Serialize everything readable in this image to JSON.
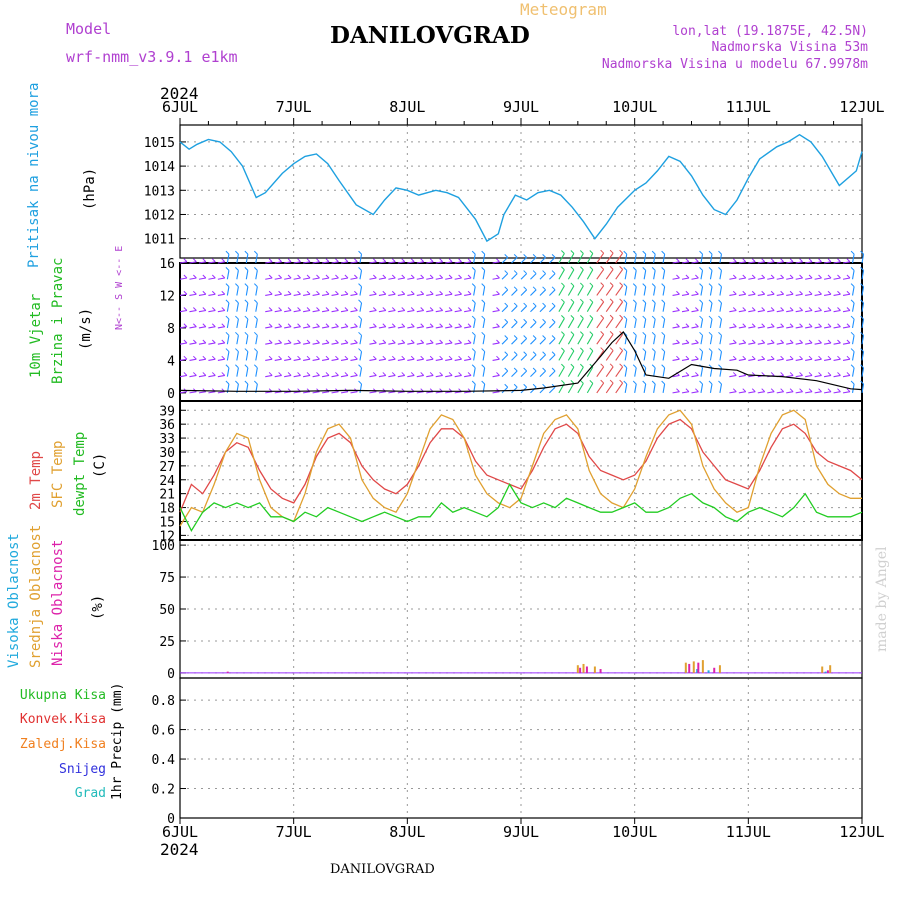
{
  "header": {
    "model_label": "Model",
    "model_name": "wrf-nmm_v3.9.1  e1km",
    "station": "DANILOVGRAD",
    "meteogram_label": "Meteogram",
    "lonlat": "lon,lat (19.1875E, 42.5N)",
    "elevation": "Nadmorska Visina 53m",
    "model_elevation": "Nadmorska Visina u modelu 67.9978m",
    "year_top": "2024",
    "year_bottom": "2024",
    "footer_station": "DANILOVGRAD",
    "credit": "made by Angel"
  },
  "colors": {
    "pressure": "#1ea0e0",
    "wind_label": "#22bb22",
    "wind_barbs": "#9b30ff",
    "wind_barbs_alt": "#1e90ff",
    "temp2m": "#e04848",
    "sfc_temp": "#e0a030",
    "dewpt": "#22cc22",
    "high_cloud": "#22aadd",
    "mid_cloud": "#e0a030",
    "low_cloud": "#dd22aa",
    "total_precip": "#22bb22",
    "conv_precip": "#e03030",
    "frozen_precip": "#f08020",
    "snow": "#3030dd",
    "hail": "#22bbbb",
    "text_purple": "#b040d0",
    "text_orange": "#f0c070"
  },
  "chart_data": [
    {
      "type": "line",
      "panel": "pressure",
      "ylabel": [
        "Pritisak na nivou mora",
        "(hPa)"
      ],
      "ylim": [
        1010.2,
        1015.7
      ],
      "yticks": [
        1011,
        1012,
        1013,
        1014,
        1015
      ],
      "x_unit": "days since 6JUL 00UTC",
      "x_ticks": [
        "6JUL",
        "7JUL",
        "8JUL",
        "9JUL",
        "10JUL",
        "11JUL",
        "12JUL"
      ],
      "series": [
        {
          "x": [
            0.0,
            0.08,
            0.15,
            0.25,
            0.35,
            0.45,
            0.55,
            0.67,
            0.75,
            0.9,
            1.0,
            1.1,
            1.2,
            1.3,
            1.4,
            1.55,
            1.7,
            1.8,
            1.9,
            2.0,
            2.1,
            2.25,
            2.35,
            2.45,
            2.6,
            2.7,
            2.8,
            2.85,
            2.95,
            3.05,
            3.15,
            3.25,
            3.35,
            3.45,
            3.55,
            3.65,
            3.75,
            3.85,
            4.0,
            4.1,
            4.2,
            4.3,
            4.4,
            4.5,
            4.6,
            4.7,
            4.8,
            4.9,
            5.0,
            5.1,
            5.25,
            5.35,
            5.45,
            5.55,
            5.65,
            5.8,
            5.95,
            6.0
          ],
          "y": [
            1015.0,
            1014.7,
            1014.9,
            1015.1,
            1015.0,
            1014.6,
            1014.0,
            1012.7,
            1012.9,
            1013.7,
            1014.1,
            1014.4,
            1014.5,
            1014.1,
            1013.4,
            1012.4,
            1012.0,
            1012.6,
            1013.1,
            1013.0,
            1012.8,
            1013.0,
            1012.9,
            1012.7,
            1011.8,
            1010.9,
            1011.2,
            1012.0,
            1012.8,
            1012.6,
            1012.9,
            1013.0,
            1012.8,
            1012.3,
            1011.7,
            1011.0,
            1011.6,
            1012.3,
            1013.0,
            1013.3,
            1013.8,
            1014.4,
            1014.2,
            1013.6,
            1012.8,
            1012.2,
            1012.0,
            1012.6,
            1013.5,
            1014.3,
            1014.8,
            1015.0,
            1015.3,
            1015.0,
            1014.4,
            1013.2,
            1013.8,
            1014.6
          ]
        }
      ]
    },
    {
      "type": "barbs",
      "panel": "wind",
      "ylabel": [
        "10m Vjetar",
        "Brzina i Pravac",
        "(m/s)"
      ],
      "ylim": [
        -1,
        16
      ],
      "yticks": [
        0,
        4,
        8,
        12,
        16
      ],
      "compass_label": "N<-- S  W <-- E",
      "rows": [
        0,
        2,
        4,
        6,
        8,
        10,
        12,
        14,
        16
      ],
      "speed_series": {
        "x": [
          0,
          0.5,
          1.0,
          1.5,
          2.0,
          2.5,
          3.0,
          3.2,
          3.5,
          3.7,
          3.8,
          3.9,
          4.0,
          4.1,
          4.3,
          4.5,
          4.7,
          4.9,
          5.0,
          5.3,
          5.6,
          5.9,
          6.0
        ],
        "y": [
          0.3,
          0.2,
          0.2,
          0.3,
          0.2,
          0.2,
          0.3,
          0.6,
          1.2,
          4.5,
          6.2,
          7.5,
          5.2,
          2.2,
          1.8,
          3.5,
          3.0,
          2.8,
          2.2,
          2.0,
          1.5,
          0.5,
          0.4
        ]
      }
    },
    {
      "type": "line",
      "panel": "temperature",
      "ylabel": [
        "2m Temp",
        "SFC Temp",
        "dewpt Temp",
        "(C)"
      ],
      "ylim": [
        11,
        41
      ],
      "yticks": [
        12,
        15,
        18,
        21,
        24,
        27,
        30,
        33,
        36,
        39
      ],
      "series": [
        {
          "name": "2m Temp",
          "x": [
            0,
            0.1,
            0.2,
            0.3,
            0.4,
            0.5,
            0.6,
            0.7,
            0.8,
            0.9,
            1.0,
            1.1,
            1.2,
            1.3,
            1.4,
            1.5,
            1.6,
            1.7,
            1.8,
            1.9,
            2.0,
            2.1,
            2.2,
            2.3,
            2.4,
            2.5,
            2.6,
            2.7,
            2.8,
            2.9,
            3.0,
            3.1,
            3.2,
            3.3,
            3.4,
            3.5,
            3.6,
            3.7,
            3.8,
            3.9,
            4.0,
            4.1,
            4.2,
            4.3,
            4.4,
            4.5,
            4.6,
            4.7,
            4.8,
            4.9,
            5.0,
            5.1,
            5.2,
            5.3,
            5.4,
            5.5,
            5.6,
            5.7,
            5.8,
            5.9,
            6.0
          ],
          "y": [
            17,
            23,
            21,
            25,
            30,
            32,
            31,
            26,
            22,
            20,
            19,
            23,
            29,
            33,
            34,
            32,
            27,
            24,
            22,
            21,
            23,
            27,
            32,
            35,
            35,
            33,
            28,
            25,
            24,
            23,
            22,
            26,
            31,
            35,
            36,
            34,
            29,
            26,
            25,
            24,
            25,
            28,
            33,
            36,
            37,
            35,
            30,
            27,
            24,
            23,
            22,
            26,
            31,
            35,
            36,
            34,
            30,
            28,
            27,
            26,
            24
          ]
        },
        {
          "name": "SFC Temp",
          "x": [
            0,
            0.1,
            0.2,
            0.3,
            0.4,
            0.5,
            0.6,
            0.7,
            0.8,
            0.9,
            1.0,
            1.1,
            1.2,
            1.3,
            1.4,
            1.5,
            1.6,
            1.7,
            1.8,
            1.9,
            2.0,
            2.1,
            2.2,
            2.3,
            2.4,
            2.5,
            2.6,
            2.7,
            2.8,
            2.9,
            3.0,
            3.1,
            3.2,
            3.3,
            3.4,
            3.5,
            3.6,
            3.7,
            3.8,
            3.9,
            4.0,
            4.1,
            4.2,
            4.3,
            4.4,
            4.5,
            4.6,
            4.7,
            4.8,
            4.9,
            5.0,
            5.1,
            5.2,
            5.3,
            5.4,
            5.5,
            5.6,
            5.7,
            5.8,
            5.9,
            6.0
          ],
          "y": [
            14,
            18,
            17,
            23,
            30,
            34,
            33,
            24,
            18,
            16,
            15,
            21,
            30,
            35,
            36,
            33,
            24,
            20,
            18,
            17,
            21,
            28,
            35,
            38,
            37,
            33,
            25,
            21,
            19,
            18,
            20,
            27,
            34,
            37,
            38,
            35,
            26,
            21,
            19,
            18,
            22,
            29,
            35,
            38,
            39,
            36,
            27,
            22,
            19,
            17,
            18,
            27,
            34,
            38,
            39,
            37,
            27,
            23,
            21,
            20,
            20
          ]
        },
        {
          "name": "dewpt Temp",
          "x": [
            0,
            0.1,
            0.2,
            0.3,
            0.4,
            0.5,
            0.6,
            0.7,
            0.8,
            0.9,
            1.0,
            1.1,
            1.2,
            1.3,
            1.4,
            1.5,
            1.6,
            1.7,
            1.8,
            1.9,
            2.0,
            2.1,
            2.2,
            2.3,
            2.4,
            2.5,
            2.6,
            2.7,
            2.8,
            2.9,
            3.0,
            3.1,
            3.2,
            3.3,
            3.4,
            3.5,
            3.6,
            3.7,
            3.8,
            3.9,
            4.0,
            4.1,
            4.2,
            4.3,
            4.4,
            4.5,
            4.6,
            4.7,
            4.8,
            4.9,
            5.0,
            5.1,
            5.2,
            5.3,
            5.4,
            5.5,
            5.6,
            5.7,
            5.8,
            5.9,
            6.0
          ],
          "y": [
            18,
            13,
            17,
            19,
            18,
            19,
            18,
            19,
            16,
            16,
            15,
            17,
            16,
            18,
            17,
            16,
            15,
            16,
            17,
            16,
            15,
            16,
            16,
            19,
            17,
            18,
            17,
            16,
            18,
            23,
            19,
            18,
            19,
            18,
            20,
            19,
            18,
            17,
            17,
            18,
            19,
            17,
            17,
            18,
            20,
            21,
            19,
            18,
            16,
            15,
            17,
            18,
            17,
            16,
            18,
            21,
            17,
            16,
            16,
            16,
            17
          ]
        }
      ]
    },
    {
      "type": "bar",
      "panel": "clouds",
      "ylabel": [
        "Visoka Oblacnost",
        "Srednja Oblacnost",
        "Niska Oblacnost",
        "(%)"
      ],
      "ylim": [
        -4,
        104
      ],
      "yticks": [
        0,
        25,
        50,
        75,
        100
      ],
      "series": [
        {
          "name": "Visoka Oblacnost",
          "x": [
            4.45,
            4.55,
            4.65,
            5.68
          ],
          "values": [
            2,
            3,
            2,
            1
          ]
        },
        {
          "name": "Srednja Oblacnost",
          "x": [
            3.5,
            3.55,
            3.65,
            4.45,
            4.52,
            4.6,
            4.75,
            5.65,
            5.72
          ],
          "values": [
            6,
            7,
            5,
            8,
            9,
            10,
            6,
            5,
            6
          ]
        },
        {
          "name": "Niska Oblacnost",
          "x": [
            0.42,
            3.52,
            3.58,
            3.7,
            4.48,
            4.56,
            4.7,
            5.7
          ],
          "values": [
            1,
            4,
            5,
            3,
            7,
            8,
            4,
            2
          ]
        }
      ]
    },
    {
      "type": "bar",
      "panel": "precip",
      "ylabel": [
        "1hr Precip (mm)"
      ],
      "ylim": [
        0,
        0.95
      ],
      "yticks": [
        0,
        0.2,
        0.4,
        0.6,
        0.8
      ],
      "series": [
        {
          "name": "Ukupna Kisa",
          "values": []
        },
        {
          "name": "Konvek.Kisa",
          "values": []
        },
        {
          "name": "Zaledj.Kisa",
          "values": []
        },
        {
          "name": "Snijeg",
          "values": []
        },
        {
          "name": "Grad",
          "values": []
        }
      ]
    }
  ]
}
